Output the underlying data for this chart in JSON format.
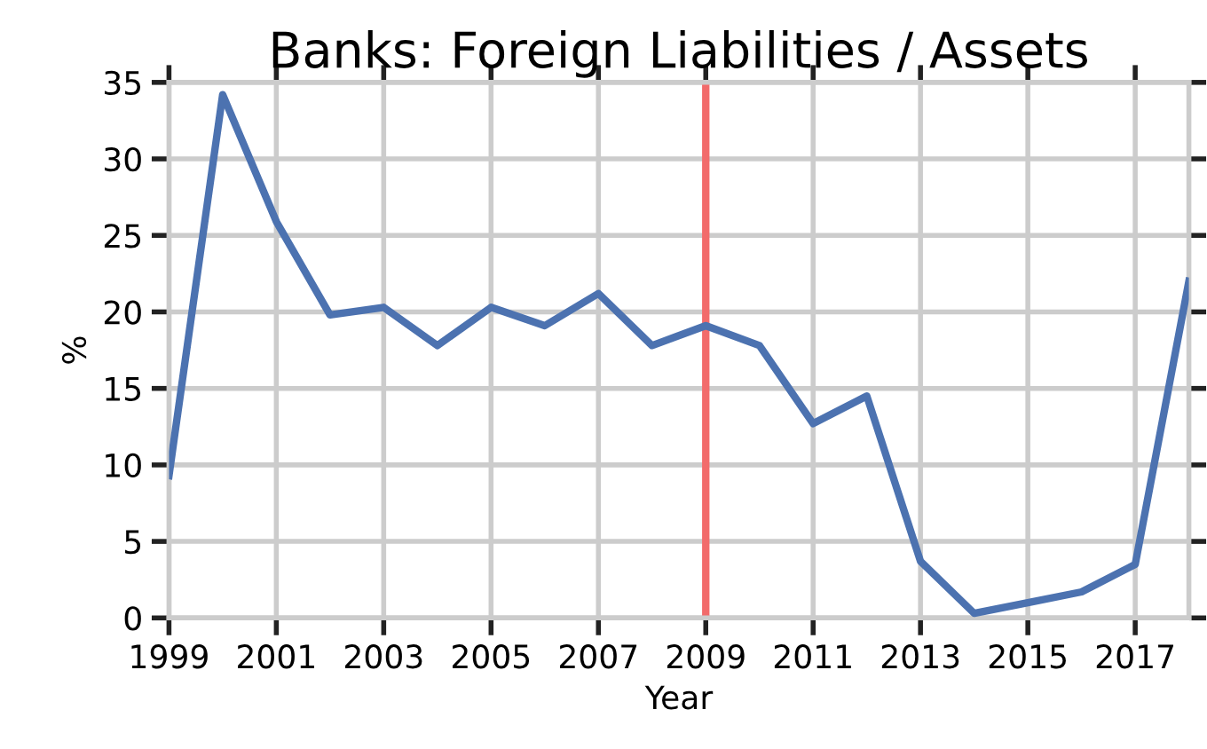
{
  "chart_data": {
    "type": "line",
    "title": "Banks: Foreign Liabilities / Assets",
    "xlabel": "Year",
    "ylabel": "%",
    "x": [
      1999,
      2000,
      2001,
      2002,
      2003,
      2004,
      2005,
      2006,
      2007,
      2008,
      2009,
      2010,
      2011,
      2012,
      2013,
      2014,
      2015,
      2016,
      2017,
      2018
    ],
    "series": [
      {
        "color": "#4c72b0",
        "values": [
          9.3,
          34.2,
          25.9,
          19.8,
          20.3,
          17.8,
          20.3,
          19.1,
          21.2,
          17.8,
          19.1,
          17.8,
          12.7,
          14.5,
          3.7,
          0.3,
          1.0,
          1.7,
          3.5,
          22.0
        ]
      }
    ],
    "xlim": [
      1999,
      2018
    ],
    "xticks": [
      1999,
      2001,
      2003,
      2005,
      2007,
      2009,
      2011,
      2013,
      2015,
      2017
    ],
    "ylim": [
      0,
      35
    ],
    "yticks": [
      0,
      5,
      10,
      15,
      20,
      25,
      30,
      35
    ],
    "ref_lines": [
      {
        "axis": "x",
        "value": 2009,
        "color": "#f26b6b"
      }
    ],
    "grid": true
  }
}
